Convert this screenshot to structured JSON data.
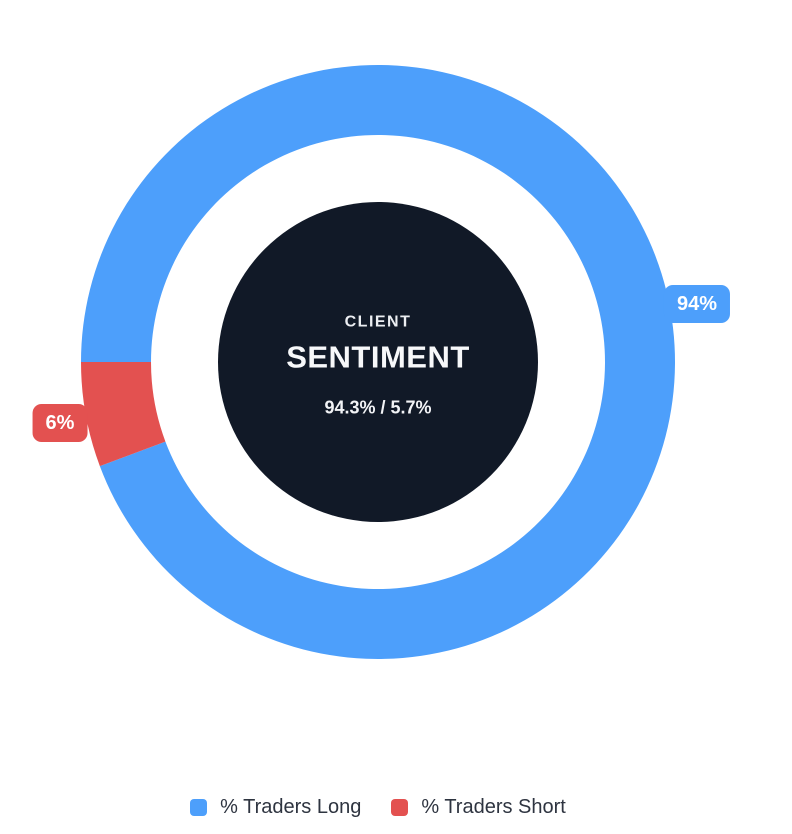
{
  "chart_data": {
    "type": "pie",
    "variant": "donut",
    "title": "CLIENT SENTIMENT",
    "start_angle_deg": 270,
    "direction": "clockwise",
    "legend_position": "bottom",
    "segments": [
      {
        "name": "% Traders Long",
        "value_pct": 94.3,
        "badge": "94%",
        "color": "#4d9ffb"
      },
      {
        "name": "% Traders Short",
        "value_pct": 5.7,
        "badge": "6%",
        "color": "#e35150"
      }
    ],
    "center_labels": {
      "kicker": "CLIENT",
      "title": "SENTIMENT",
      "ratio": "94.3% / 5.7%"
    },
    "colors": {
      "center_disc": "#111927",
      "center_text": "#f5f6f8",
      "badge_text": "#ffffff",
      "legend_text": "#2e3440",
      "background": "#ffffff"
    }
  }
}
